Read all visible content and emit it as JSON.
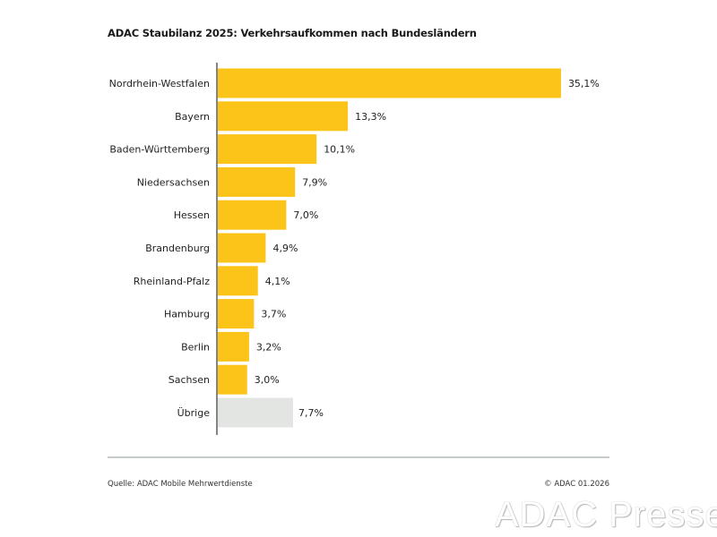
{
  "chart_data": {
    "type": "bar",
    "orientation": "horizontal",
    "title": "ADAC Staubilanz 2025: Verkehrsaufkommen nach Bundesländern",
    "categories": [
      "Nordrhein-Westfalen",
      "Bayern",
      "Baden-Württemberg",
      "Niedersachsen",
      "Hessen",
      "Brandenburg",
      "Rheinland-Pfalz",
      "Hamburg",
      "Berlin",
      "Sachsen",
      "Übrige"
    ],
    "values": [
      35.1,
      13.3,
      10.1,
      7.9,
      7.0,
      4.9,
      4.1,
      3.7,
      3.2,
      3.0,
      7.7
    ],
    "value_labels": [
      "35,1%",
      "13,3%",
      "10,1%",
      "7,9%",
      "7,0%",
      "4,9%",
      "4,1%",
      "3,7%",
      "3,2%",
      "3,0%",
      "7,7%"
    ],
    "unit": "%",
    "grid": false,
    "colors": {
      "bar": "#fcc419",
      "other": "#e3e5e3",
      "axis": "#333333"
    }
  },
  "footer": {
    "source": "Quelle: ADAC Mobile Mehrwertdienste",
    "copyright": "© ADAC 01.2026",
    "watermark": "ADAC Presse"
  }
}
